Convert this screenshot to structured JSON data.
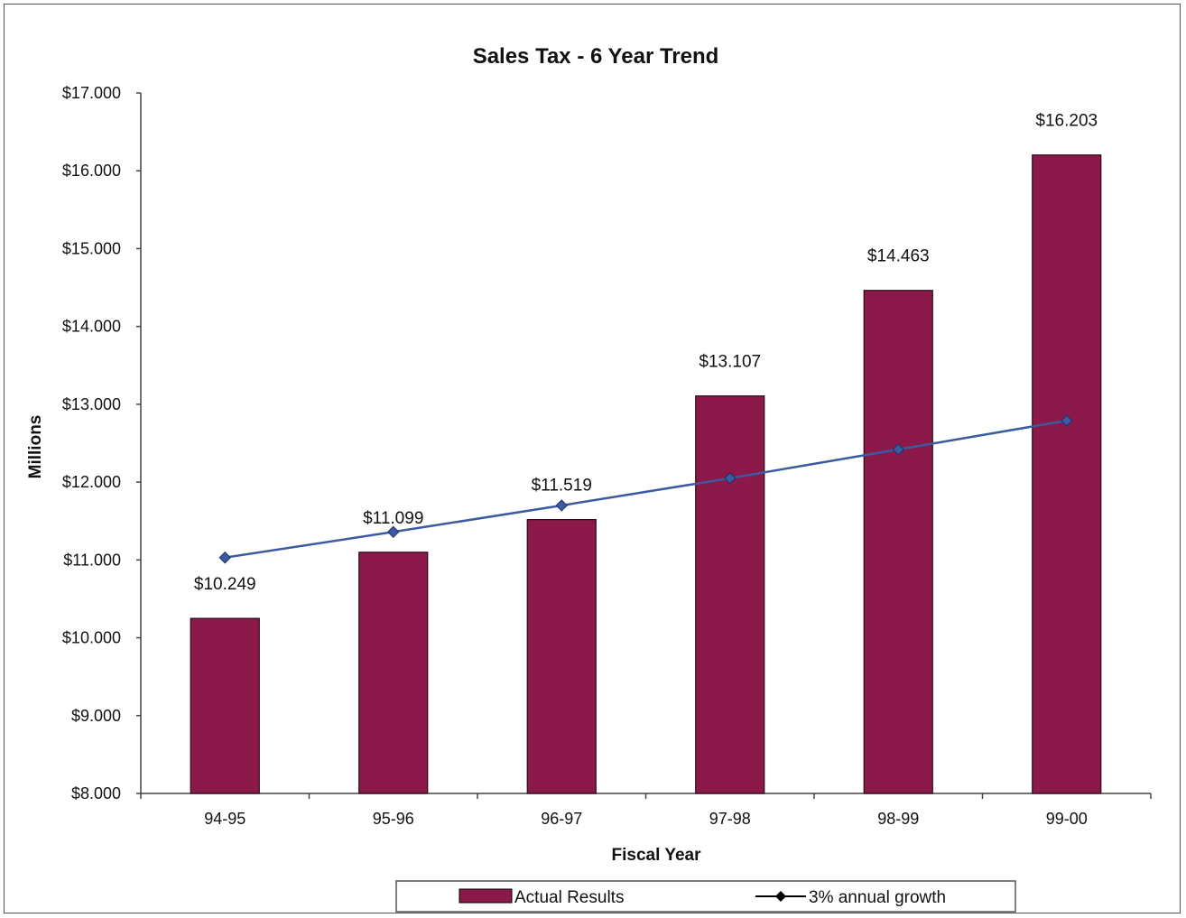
{
  "chart_data": {
    "type": "bar",
    "title": "Sales Tax - 6 Year Trend",
    "xlabel": "Fiscal Year",
    "ylabel": "Millions",
    "categories": [
      "94-95",
      "95-96",
      "96-97",
      "97-98",
      "98-99",
      "99-00"
    ],
    "ylim": [
      8,
      17
    ],
    "yticks": [
      8,
      9,
      10,
      11,
      12,
      13,
      14,
      15,
      16,
      17
    ],
    "ytick_labels": [
      "$8.000",
      "$9.000",
      "$10.000",
      "$11.000",
      "$12.000",
      "$13.000",
      "$14.000",
      "$15.000",
      "$16.000",
      "$17.000"
    ],
    "grid": false,
    "legend_position": "bottom",
    "series": [
      {
        "name": "Actual Results",
        "type": "bar",
        "color": "#8B1A4A",
        "values": [
          10.249,
          11.099,
          11.519,
          13.107,
          14.463,
          16.203
        ],
        "data_labels": [
          "$10.249",
          "$11.099",
          "$11.519",
          "$13.107",
          "$14.463",
          "$16.203"
        ]
      },
      {
        "name": "3% annual growth",
        "type": "line",
        "color": "#3A5BA0",
        "marker": "diamond",
        "values": [
          11.03,
          11.36,
          11.7,
          12.05,
          12.42,
          12.79
        ]
      }
    ]
  }
}
